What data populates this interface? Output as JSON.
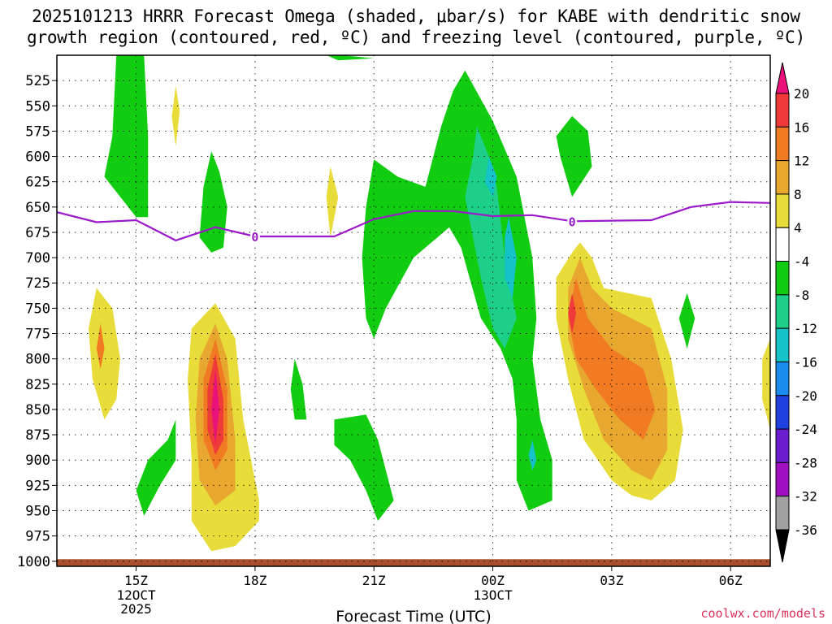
{
  "chart_data": {
    "type": "heatmap",
    "title_line1": "2025101213 HRRR Forecast Omega (shaded, μbar/s) for KABE with dendritic snow",
    "title_line2": "growth region (contoured, red, ºC) and freezing level (contoured, purple, ºC)",
    "xlabel": "Forecast Time (UTC)",
    "ylabel": "",
    "x_range_hours": [
      13.0,
      31.0
    ],
    "y_range_mb": [
      1005,
      500
    ],
    "x_ticks": [
      {
        "hour": 15,
        "label": "15Z",
        "sub": [
          "12OCT",
          "2025"
        ]
      },
      {
        "hour": 18,
        "label": "18Z",
        "sub": []
      },
      {
        "hour": 21,
        "label": "21Z",
        "sub": []
      },
      {
        "hour": 24,
        "label": "00Z",
        "sub": [
          "13OCT"
        ]
      },
      {
        "hour": 27,
        "label": "03Z",
        "sub": []
      },
      {
        "hour": 30,
        "label": "06Z",
        "sub": []
      }
    ],
    "y_ticks": [
      525,
      550,
      575,
      600,
      625,
      650,
      675,
      700,
      725,
      750,
      775,
      800,
      825,
      850,
      875,
      900,
      925,
      950,
      975,
      1000
    ],
    "colorbar": {
      "labels": [
        "20",
        "16",
        "12",
        "8",
        "4",
        "-4",
        "-8",
        "-12",
        "-16",
        "-20",
        "-24",
        "-28",
        "-32",
        "-36"
      ],
      "bins": [
        {
          "range": ">20",
          "color": "#e8127a"
        },
        {
          "range": "16 to 20",
          "color": "#ee3a3a"
        },
        {
          "range": "12 to 16",
          "color": "#f07b22"
        },
        {
          "range": "8 to 12",
          "color": "#e8a830"
        },
        {
          "range": "4 to 8",
          "color": "#e8dc3a"
        },
        {
          "range": "-4 to 4",
          "color": "#ffffff"
        },
        {
          "range": "-8 to -4",
          "color": "#11cc11"
        },
        {
          "range": "-12 to -8",
          "color": "#1ecf8a"
        },
        {
          "range": "-16 to -12",
          "color": "#14c2c8"
        },
        {
          "range": "-20 to -16",
          "color": "#1a8cf0"
        },
        {
          "range": "-24 to -20",
          "color": "#2040e0"
        },
        {
          "range": "-28 to -24",
          "color": "#6a1ed0"
        },
        {
          "range": "-32 to -28",
          "color": "#a010c0"
        },
        {
          "range": "-36 to -32",
          "color": "#a0a0a0"
        },
        {
          "range": "<-36",
          "color": "#000000"
        }
      ]
    },
    "freezing_level": {
      "label": "0",
      "color": "#9b19c9",
      "points": [
        {
          "hour": 13.0,
          "mb": 655
        },
        {
          "hour": 14.0,
          "mb": 665
        },
        {
          "hour": 15.0,
          "mb": 663
        },
        {
          "hour": 16.0,
          "mb": 683
        },
        {
          "hour": 17.0,
          "mb": 670
        },
        {
          "hour": 18.0,
          "mb": 679
        },
        {
          "hour": 19.0,
          "mb": 679
        },
        {
          "hour": 20.0,
          "mb": 679
        },
        {
          "hour": 21.0,
          "mb": 662
        },
        {
          "hour": 22.0,
          "mb": 654
        },
        {
          "hour": 23.0,
          "mb": 654
        },
        {
          "hour": 24.0,
          "mb": 659
        },
        {
          "hour": 25.0,
          "mb": 658
        },
        {
          "hour": 26.0,
          "mb": 664
        },
        {
          "hour": 28.0,
          "mb": 663
        },
        {
          "hour": 29.0,
          "mb": 650
        },
        {
          "hour": 30.0,
          "mb": 645
        },
        {
          "hour": 31.0,
          "mb": 646
        }
      ],
      "label_positions": [
        {
          "hour": 18.0,
          "mb": 679
        },
        {
          "hour": 26.0,
          "mb": 664
        }
      ]
    },
    "omega_regions": [
      {
        "name": "green-upper-15z",
        "level": "-8 to -4",
        "points": [
          [
            14.5,
            500
          ],
          [
            15.2,
            500
          ],
          [
            15.3,
            580
          ],
          [
            15.3,
            660
          ],
          [
            15.0,
            660
          ],
          [
            14.2,
            620
          ],
          [
            14.4,
            580
          ]
        ]
      },
      {
        "name": "green-upper-21z",
        "level": "-8 to -4",
        "points": [
          [
            19.8,
            500
          ],
          [
            20.2,
            500
          ],
          [
            21.0,
            503
          ],
          [
            20.1,
            505
          ]
        ]
      },
      {
        "name": "green-mid-17z",
        "level": "-8 to -4",
        "points": [
          [
            16.9,
            595
          ],
          [
            17.1,
            615
          ],
          [
            17.3,
            650
          ],
          [
            17.2,
            690
          ],
          [
            16.9,
            695
          ],
          [
            16.6,
            680
          ],
          [
            16.7,
            630
          ]
        ]
      },
      {
        "name": "green-center",
        "level": "-8 to -4",
        "points": [
          [
            21.0,
            603
          ],
          [
            21.6,
            620
          ],
          [
            22.3,
            630
          ],
          [
            22.7,
            570
          ],
          [
            23.0,
            535
          ],
          [
            23.3,
            515
          ],
          [
            24.0,
            565
          ],
          [
            24.6,
            620
          ],
          [
            25.0,
            700
          ],
          [
            25.1,
            760
          ],
          [
            25.0,
            800
          ],
          [
            25.2,
            860
          ],
          [
            25.5,
            900
          ],
          [
            25.5,
            940
          ],
          [
            24.9,
            950
          ],
          [
            24.6,
            920
          ],
          [
            24.6,
            860
          ],
          [
            24.5,
            820
          ],
          [
            24.2,
            790
          ],
          [
            23.7,
            760
          ],
          [
            23.2,
            690
          ],
          [
            22.9,
            670
          ],
          [
            22.6,
            680
          ],
          [
            22.0,
            700
          ],
          [
            21.3,
            750
          ],
          [
            21.0,
            780
          ],
          [
            20.8,
            760
          ],
          [
            20.7,
            700
          ],
          [
            20.8,
            650
          ]
        ]
      },
      {
        "name": "teal-center",
        "level": "-12 to -8",
        "points": [
          [
            23.6,
            570
          ],
          [
            23.9,
            600
          ],
          [
            24.1,
            630
          ],
          [
            24.3,
            700
          ],
          [
            24.6,
            760
          ],
          [
            24.3,
            790
          ],
          [
            24.0,
            770
          ],
          [
            23.7,
            720
          ],
          [
            23.3,
            640
          ],
          [
            23.5,
            600
          ]
        ]
      },
      {
        "name": "cyan-center-upper",
        "level": "-16 to -12",
        "points": [
          [
            23.9,
            600
          ],
          [
            24.1,
            620
          ],
          [
            24.0,
            640
          ],
          [
            23.8,
            625
          ]
        ]
      },
      {
        "name": "cyan-center-lower",
        "level": "-16 to -12",
        "points": [
          [
            24.4,
            660
          ],
          [
            24.6,
            700
          ],
          [
            24.5,
            740
          ],
          [
            24.3,
            720
          ],
          [
            24.3,
            680
          ]
        ]
      },
      {
        "name": "cyan-900",
        "level": "-16 to -12",
        "points": [
          [
            25.0,
            880
          ],
          [
            25.1,
            900
          ],
          [
            25.0,
            910
          ],
          [
            24.9,
            895
          ]
        ]
      },
      {
        "name": "green-3z-upper",
        "level": "-8 to -4",
        "points": [
          [
            26.0,
            560
          ],
          [
            26.4,
            575
          ],
          [
            26.5,
            610
          ],
          [
            26.0,
            640
          ],
          [
            25.7,
            600
          ],
          [
            25.6,
            580
          ]
        ]
      },
      {
        "name": "green-5z",
        "level": "-8 to -4",
        "points": [
          [
            28.9,
            735
          ],
          [
            29.1,
            760
          ],
          [
            28.9,
            790
          ],
          [
            28.7,
            760
          ]
        ]
      },
      {
        "name": "green-lower-16z",
        "level": "-8 to -4",
        "points": [
          [
            15.0,
            930
          ],
          [
            15.3,
            900
          ],
          [
            15.8,
            880
          ],
          [
            16.0,
            860
          ],
          [
            16.0,
            900
          ],
          [
            15.6,
            925
          ],
          [
            15.2,
            955
          ]
        ]
      },
      {
        "name": "green-lower-19z",
        "level": "-8 to -4",
        "points": [
          [
            19.0,
            800
          ],
          [
            19.2,
            825
          ],
          [
            19.3,
            860
          ],
          [
            19.0,
            860
          ],
          [
            18.9,
            830
          ]
        ]
      },
      {
        "name": "green-lower-21z",
        "level": "-8 to -4",
        "points": [
          [
            20.0,
            860
          ],
          [
            20.8,
            855
          ],
          [
            21.1,
            880
          ],
          [
            21.5,
            940
          ],
          [
            21.1,
            960
          ],
          [
            20.8,
            930
          ],
          [
            20.4,
            900
          ],
          [
            20.0,
            885
          ]
        ]
      },
      {
        "name": "yellow-14z",
        "level": "4 to 8",
        "points": [
          [
            14.0,
            730
          ],
          [
            14.4,
            750
          ],
          [
            14.6,
            800
          ],
          [
            14.5,
            840
          ],
          [
            14.2,
            860
          ],
          [
            13.9,
            820
          ],
          [
            13.8,
            770
          ]
        ]
      },
      {
        "name": "orange-14z",
        "level": "12 to 16",
        "points": [
          [
            14.1,
            765
          ],
          [
            14.2,
            790
          ],
          [
            14.1,
            810
          ],
          [
            14.0,
            790
          ]
        ]
      },
      {
        "name": "yellow-16z-thin",
        "level": "4 to 8",
        "points": [
          [
            16.0,
            530
          ],
          [
            16.1,
            555
          ],
          [
            16.0,
            590
          ],
          [
            15.9,
            560
          ]
        ]
      },
      {
        "name": "yellow-20z-thin",
        "level": "4 to 8",
        "points": [
          [
            19.9,
            610
          ],
          [
            20.1,
            640
          ],
          [
            19.9,
            680
          ],
          [
            19.8,
            640
          ]
        ]
      },
      {
        "name": "yellow-17z",
        "level": "4 to 8",
        "points": [
          [
            17.0,
            745
          ],
          [
            17.5,
            780
          ],
          [
            17.7,
            860
          ],
          [
            18.1,
            940
          ],
          [
            18.1,
            960
          ],
          [
            17.5,
            985
          ],
          [
            16.9,
            990
          ],
          [
            16.4,
            960
          ],
          [
            16.4,
            900
          ],
          [
            16.3,
            820
          ],
          [
            16.4,
            770
          ]
        ]
      },
      {
        "name": "amber-17z",
        "level": "8 to 12",
        "points": [
          [
            17.0,
            765
          ],
          [
            17.3,
            800
          ],
          [
            17.5,
            880
          ],
          [
            17.5,
            930
          ],
          [
            17.0,
            945
          ],
          [
            16.6,
            920
          ],
          [
            16.5,
            860
          ],
          [
            16.6,
            800
          ]
        ]
      },
      {
        "name": "orange-17z",
        "level": "12 to 16",
        "points": [
          [
            17.0,
            780
          ],
          [
            17.3,
            830
          ],
          [
            17.3,
            890
          ],
          [
            17.0,
            910
          ],
          [
            16.7,
            880
          ],
          [
            16.7,
            820
          ]
        ]
      },
      {
        "name": "red-17z",
        "level": "16 to 20",
        "points": [
          [
            17.0,
            795
          ],
          [
            17.2,
            840
          ],
          [
            17.2,
            880
          ],
          [
            17.0,
            895
          ],
          [
            16.8,
            870
          ],
          [
            16.8,
            830
          ]
        ]
      },
      {
        "name": "magenta-17z",
        "level": ">20",
        "points": [
          [
            17.0,
            810
          ],
          [
            17.1,
            850
          ],
          [
            17.0,
            885
          ],
          [
            16.9,
            850
          ]
        ]
      },
      {
        "name": "yellow-3z",
        "level": "4 to 8",
        "points": [
          [
            26.2,
            685
          ],
          [
            26.5,
            700
          ],
          [
            26.8,
            730
          ],
          [
            28.0,
            740
          ],
          [
            28.5,
            800
          ],
          [
            28.8,
            870
          ],
          [
            28.6,
            920
          ],
          [
            28.0,
            940
          ],
          [
            27.5,
            935
          ],
          [
            27.0,
            920
          ],
          [
            26.3,
            880
          ],
          [
            25.9,
            820
          ],
          [
            25.6,
            760
          ],
          [
            25.6,
            720
          ],
          [
            26.0,
            695
          ]
        ]
      },
      {
        "name": "amber-3z",
        "level": "8 to 12",
        "points": [
          [
            26.2,
            700
          ],
          [
            26.5,
            730
          ],
          [
            27.0,
            750
          ],
          [
            28.0,
            770
          ],
          [
            28.4,
            830
          ],
          [
            28.4,
            890
          ],
          [
            28.0,
            920
          ],
          [
            27.5,
            910
          ],
          [
            26.8,
            880
          ],
          [
            26.3,
            830
          ],
          [
            25.9,
            780
          ],
          [
            25.9,
            730
          ]
        ]
      },
      {
        "name": "orange-3z",
        "level": "12 to 16",
        "points": [
          [
            26.1,
            720
          ],
          [
            26.4,
            760
          ],
          [
            27.0,
            790
          ],
          [
            27.8,
            810
          ],
          [
            28.1,
            850
          ],
          [
            27.8,
            880
          ],
          [
            27.2,
            860
          ],
          [
            26.6,
            830
          ],
          [
            26.1,
            800
          ],
          [
            25.9,
            760
          ]
        ]
      },
      {
        "name": "red-2z",
        "level": "16 to 20",
        "points": [
          [
            26.0,
            735
          ],
          [
            26.1,
            755
          ],
          [
            26.0,
            775
          ],
          [
            25.9,
            755
          ]
        ]
      },
      {
        "name": "yellow-7z",
        "level": "4 to 8",
        "points": [
          [
            30.8,
            800
          ],
          [
            31.0,
            780
          ],
          [
            31.0,
            870
          ],
          [
            30.8,
            840
          ]
        ]
      }
    ],
    "ground": {
      "color": "#a84e2c",
      "from_mb": 998,
      "to_mb": 1005
    }
  },
  "source_credit": "coolwx.com/models"
}
